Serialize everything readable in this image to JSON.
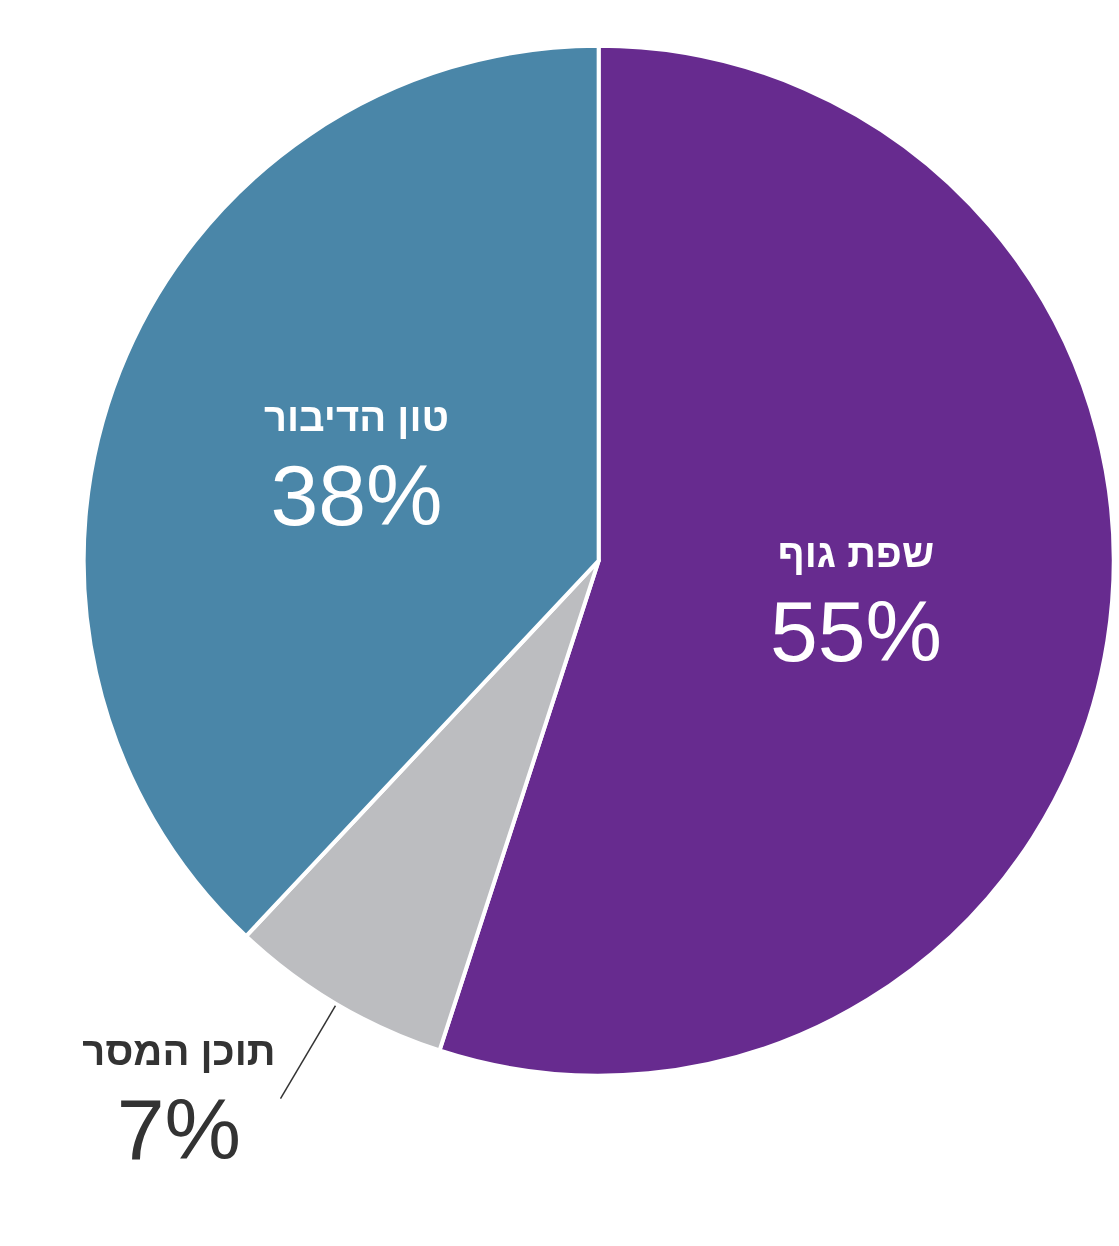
{
  "chart_data": {
    "type": "pie",
    "categories": [
      "שפת גוף",
      "תוכן המסר",
      "טון הדיבור"
    ],
    "values": [
      55,
      7,
      38
    ],
    "value_labels": [
      "55%",
      "7%",
      "38%"
    ],
    "colors": [
      "#672b8f",
      "#bcbdc0",
      "#4a86a8"
    ],
    "legend": false
  }
}
